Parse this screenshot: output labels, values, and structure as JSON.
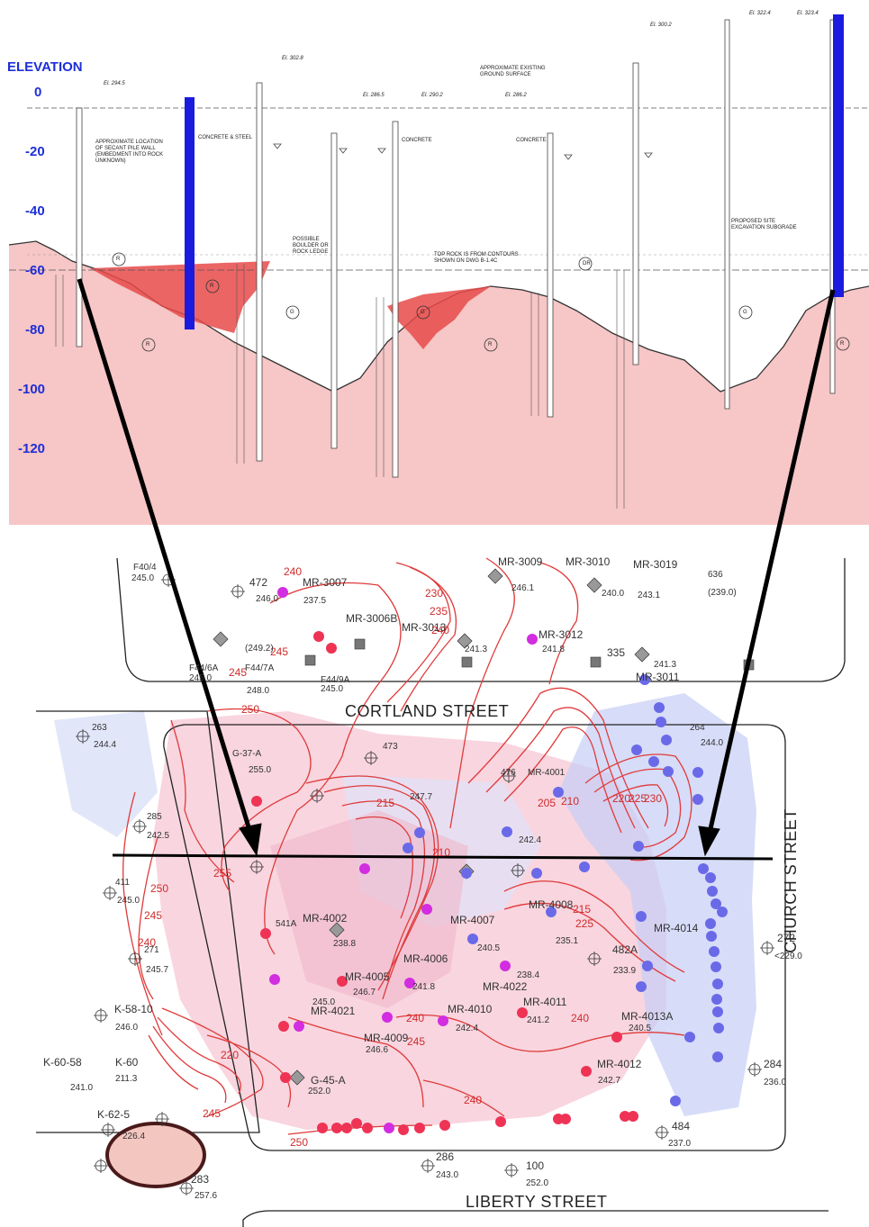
{
  "section": {
    "elevation_label": "ELEVATION",
    "elevation_ticks": [
      "0",
      "-20",
      "-40",
      "-60",
      "-80",
      "-100",
      "-120"
    ],
    "boring_elevations": [
      "El. 294.5",
      "El. 302.8",
      "El. 286.5",
      "El. 290.2",
      "El. 286.2",
      "El. 300.2",
      "El. 322.4",
      "El. 323.4"
    ],
    "notes": {
      "secant_wall": "APPROXIMATE LOCATION OF SECANT PILE WALL (EMBEDMENT INTO ROCK UNKNOWN)",
      "concrete_steel": "CONCRETE & STEEL",
      "concrete_1": "CONCRETE",
      "concrete_2": "CONCRETE",
      "ground_surface": "APPROXIMATE EXISTING GROUND SURFACE",
      "boulder": "POSSIBLE BOULDER OR ROCK LEDGE",
      "top_rock": "TOP ROCK IS FROM CONTOURS SHOWN ON DWG B-1.4C",
      "subgrade": "PROPOSED SITE EXCAVATION SUBGRADE"
    },
    "zone_labels": [
      "R",
      "G",
      "R",
      "G",
      "R",
      "G",
      "R",
      "R",
      "G",
      "DR",
      "R"
    ],
    "colors": {
      "rock": "#f7c6c6",
      "fill_red": "#e84a4a",
      "pile": "#1b1be0",
      "elevation_text": "#1d2fd8"
    }
  },
  "map": {
    "streets": {
      "cortland": "CORTLAND STREET",
      "church": "CHURCH STREET",
      "liberty": "LIBERTY STREET"
    },
    "contour_labels": [
      "240",
      "230",
      "235",
      "240",
      "245",
      "250",
      "255",
      "250",
      "245",
      "240",
      "235",
      "230",
      "225",
      "220",
      "215",
      "210",
      "205",
      "215",
      "220",
      "225",
      "230",
      "235",
      "240",
      "245",
      "250",
      "240",
      "245"
    ],
    "boring_labels": [
      {
        "id": "F40/4",
        "elev": "245.0"
      },
      {
        "id": "472",
        "elev": "246.0"
      },
      {
        "id": "MR-3007",
        "elev": "237.5"
      },
      {
        "id": "MR-3009",
        "elev": "246.1"
      },
      {
        "id": "MR-3010",
        "elev": "240.0"
      },
      {
        "id": "MR-3019",
        "elev": "243.1"
      },
      {
        "id": "636",
        "elev": "(239.0)"
      },
      {
        "id": "MR-3006B",
        "elev": "(249.2)"
      },
      {
        "id": "MR-3013",
        "elev": "241.3"
      },
      {
        "id": "MR-3012",
        "elev": "241.8"
      },
      {
        "id": "335",
        "elev": "241.3"
      },
      {
        "id": "MR-3011",
        "elev": ""
      },
      {
        "id": "F44/6A",
        "elev": "245.0"
      },
      {
        "id": "F44/7A",
        "elev": "248.0"
      },
      {
        "id": "F44/9A",
        "elev": "245.0"
      },
      {
        "id": "263",
        "elev": "244.4"
      },
      {
        "id": "G-37-A",
        "elev": "255.0"
      },
      {
        "id": "473",
        "elev": "247.7"
      },
      {
        "id": "476",
        "elev": "242.4"
      },
      {
        "id": "MR-4001",
        "elev": ""
      },
      {
        "id": "264",
        "elev": "244.0"
      },
      {
        "id": "285",
        "elev": "242.5"
      },
      {
        "id": "411",
        "elev": "245.0"
      },
      {
        "id": "271",
        "elev": "245.7"
      },
      {
        "id": "541A",
        "elev": ""
      },
      {
        "id": "MR-4002",
        "elev": "238.8"
      },
      {
        "id": "MR-4005",
        "elev": "246.7"
      },
      {
        "id": "MR-4006",
        "elev": "241.8"
      },
      {
        "id": "MR-4007",
        "elev": "240.5"
      },
      {
        "id": "MR-4008",
        "elev": "235.1"
      },
      {
        "id": "MR-4022",
        "elev": "238.4"
      },
      {
        "id": "482A",
        "elev": "233.9"
      },
      {
        "id": "MR-4014",
        "elev": ""
      },
      {
        "id": "272",
        "elev": "<229.0"
      },
      {
        "id": "K-58-10",
        "elev": "246.0"
      },
      {
        "id": "MR-4021",
        "elev": "245.0"
      },
      {
        "id": "MR-4009",
        "elev": "246.6"
      },
      {
        "id": "MR-4010",
        "elev": "242.4"
      },
      {
        "id": "MR-4011",
        "elev": "241.2"
      },
      {
        "id": "MR-4013A",
        "elev": "240.5"
      },
      {
        "id": "MR-4012",
        "elev": "242.7"
      },
      {
        "id": "K-60-58",
        "elev": "241.0"
      },
      {
        "id": "K-60",
        "elev": "211.3"
      },
      {
        "id": "G-45-A",
        "elev": "252.0"
      },
      {
        "id": "284",
        "elev": "236.0"
      },
      {
        "id": "K-62-5",
        "elev": "226.4"
      },
      {
        "id": "484",
        "elev": "237.0"
      },
      {
        "id": "286",
        "elev": "243.0"
      },
      {
        "id": "100",
        "elev": "252.0"
      },
      {
        "id": "283",
        "elev": "257.6"
      }
    ],
    "colors": {
      "contour": "#e03a3a",
      "red_boring": "#ee3355",
      "blue_boring": "#6a6ae8",
      "magenta_boring": "#d22de0",
      "pink_zone": "#f5c7d4",
      "blue_zone": "#c6cdf5",
      "ellipse": "#4a1a1a"
    }
  }
}
